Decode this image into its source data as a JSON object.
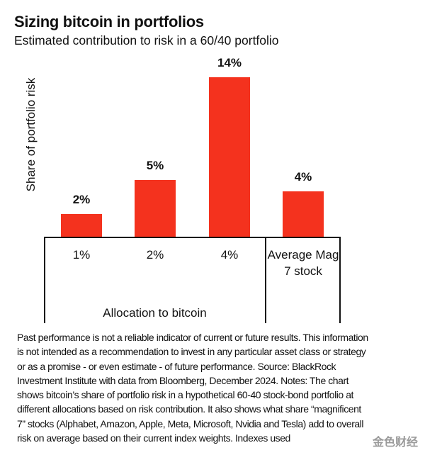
{
  "chart_data": {
    "type": "bar",
    "title": "Sizing bitcoin in portfolios",
    "subtitle": "Estimated contribution to risk in a 60/40 portfolio",
    "y_label": "Share of portfolio risk",
    "x_label": "Allocation to bitcoin",
    "categories": [
      "1%",
      "2%",
      "4%",
      "Average Mag 7 stock"
    ],
    "values": [
      2,
      5,
      14,
      4
    ],
    "value_labels": [
      "2%",
      "5%",
      "14%",
      "4%"
    ],
    "color": "#f4321e"
  },
  "footnote": "Past performance is not a reliable indicator of current or future results. This information is not intended as a recommendation to invest in any particular asset class or strategy or as a promise - or even estimate - of future performance. Source: BlackRock Investment Institute with data from Bloomberg, December 2024. Notes: The chart shows bitcoin’s share of portfolio risk in a hypothetical 60-40 stock-bond portfolio at different allocations based on risk contribution. It also shows what share “magnificent 7” stocks (Alphabet, Amazon, Apple, Meta, Microsoft, Nvidia and Tesla) add to overall risk on average based on their current index weights. Indexes used",
  "watermark": "金色财经"
}
